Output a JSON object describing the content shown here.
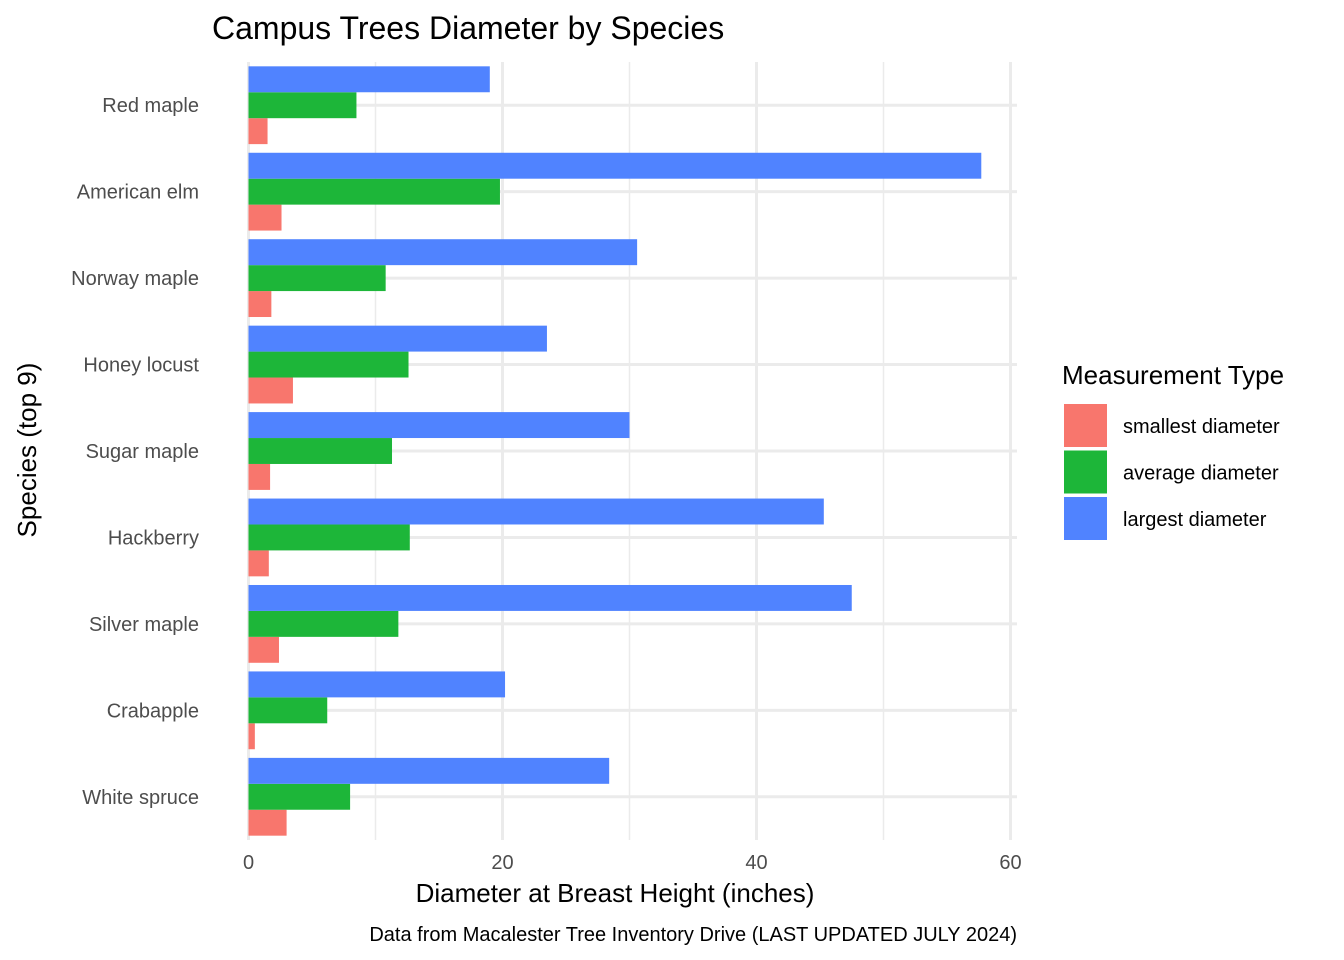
{
  "chart_data": {
    "type": "bar",
    "orientation": "horizontal",
    "title": "Campus Trees Diameter by Species",
    "xlabel": "Diameter at Breast Height (inches)",
    "ylabel": "Species (top 9)",
    "caption": "Data from Macalester Tree Inventory Drive (LAST UPDATED JULY 2024)",
    "xlim": [
      0,
      60
    ],
    "x_ticks": [
      0,
      20,
      40,
      60
    ],
    "grid": true,
    "legend_position": "right",
    "legend_title": "Measurement Type",
    "categories": [
      "Red maple",
      "American elm",
      "Norway maple",
      "Honey locust",
      "Sugar maple",
      "Hackberry",
      "Silver maple",
      "Crabapple",
      "White spruce"
    ],
    "series": [
      {
        "name": "smallest diameter",
        "color": "#F8766D",
        "values": [
          1.5,
          2.6,
          1.8,
          3.5,
          1.7,
          1.6,
          2.4,
          0.5,
          3.0
        ]
      },
      {
        "name": "average diameter",
        "color": "#1DB639",
        "values": [
          8.5,
          19.8,
          10.8,
          12.6,
          11.3,
          12.7,
          11.8,
          6.2,
          8.0
        ]
      },
      {
        "name": "largest diameter",
        "color": "#5083FF",
        "values": [
          19.0,
          57.7,
          30.6,
          23.5,
          30.0,
          45.3,
          47.5,
          20.2,
          28.4
        ]
      }
    ]
  }
}
